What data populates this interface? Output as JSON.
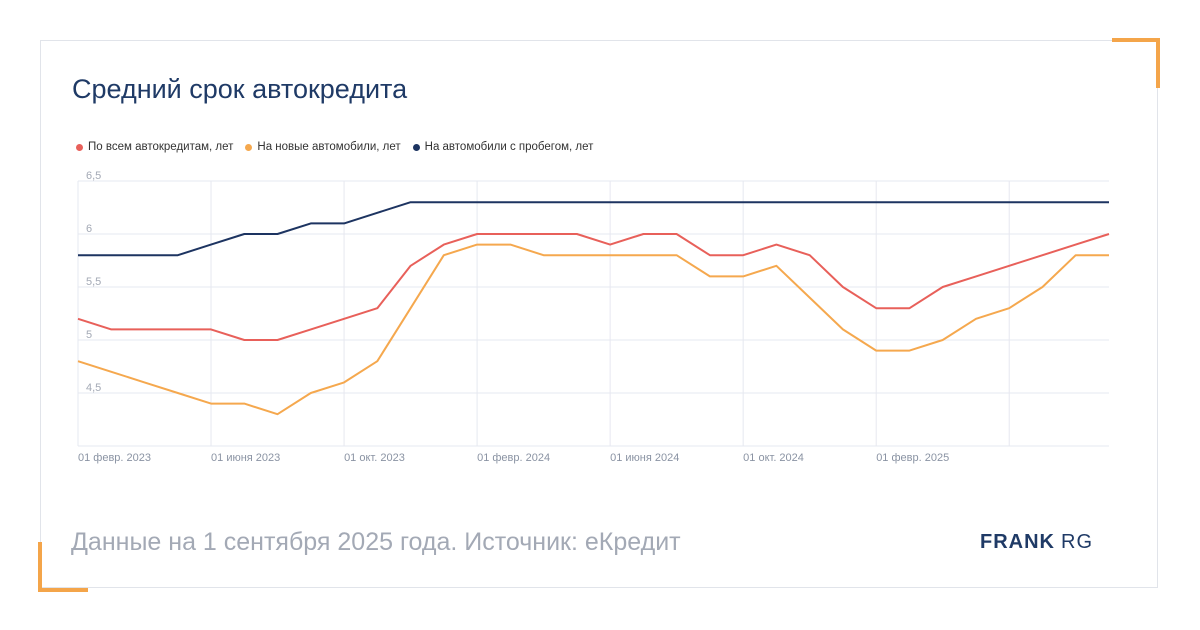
{
  "title": "Средний срок автокредита",
  "footer": "Данные на 1 сентября 2025 года. Источник: еКредит",
  "logo": {
    "bold": "FRANK",
    "light": "RG"
  },
  "colors": {
    "accent": "#f4a54a",
    "border": "#e1e4ea",
    "title": "#1f3a66",
    "grid": "#e6e8f0"
  },
  "chart_data": {
    "type": "line",
    "title": "Средний срок автокредита",
    "xlabel": "",
    "ylabel": "",
    "ylim": [
      4,
      6.5
    ],
    "yticks": [
      "6,5",
      "6",
      "5,5",
      "5",
      "4,5"
    ],
    "ytick_values": [
      6.5,
      6,
      5.5,
      5,
      4.5
    ],
    "x_tick_labels": [
      "01 февр. 2023",
      "01 июня 2023",
      "01 окт. 2023",
      "01 февр. 2024",
      "01 июня 2024",
      "01 окт. 2024",
      "01 февр. 2025"
    ],
    "x_tick_indices": [
      0,
      4,
      8,
      12,
      16,
      20,
      24
    ],
    "x_count": 32,
    "legend_position": "top-left",
    "grid": true,
    "series": [
      {
        "name": "По всем автокредитам, лет",
        "color": "#e8605a",
        "values": [
          5.2,
          5.1,
          5.1,
          5.1,
          5.1,
          5.0,
          5.0,
          5.1,
          5.2,
          5.3,
          5.7,
          5.9,
          6.0,
          6.0,
          6.0,
          6.0,
          5.9,
          6.0,
          6.0,
          5.8,
          5.8,
          5.9,
          5.8,
          5.5,
          5.3,
          5.3,
          5.5,
          5.6,
          5.7,
          5.8,
          5.9,
          6.0
        ]
      },
      {
        "name": "На новые автомобили, лет",
        "color": "#f5a84e",
        "values": [
          4.8,
          4.7,
          4.6,
          4.5,
          4.4,
          4.4,
          4.3,
          4.5,
          4.6,
          4.8,
          5.3,
          5.8,
          5.9,
          5.9,
          5.8,
          5.8,
          5.8,
          5.8,
          5.8,
          5.6,
          5.6,
          5.7,
          5.4,
          5.1,
          4.9,
          4.9,
          5.0,
          5.2,
          5.3,
          5.5,
          5.8,
          5.8
        ]
      },
      {
        "name": "На автомобили с пробегом, лет",
        "color": "#1d3461",
        "values": [
          5.8,
          5.8,
          5.8,
          5.8,
          5.9,
          6.0,
          6.0,
          6.1,
          6.1,
          6.2,
          6.3,
          6.3,
          6.3,
          6.3,
          6.3,
          6.3,
          6.3,
          6.3,
          6.3,
          6.3,
          6.3,
          6.3,
          6.3,
          6.3,
          6.3,
          6.3,
          6.3,
          6.3,
          6.3,
          6.3,
          6.3,
          6.3
        ]
      }
    ]
  }
}
